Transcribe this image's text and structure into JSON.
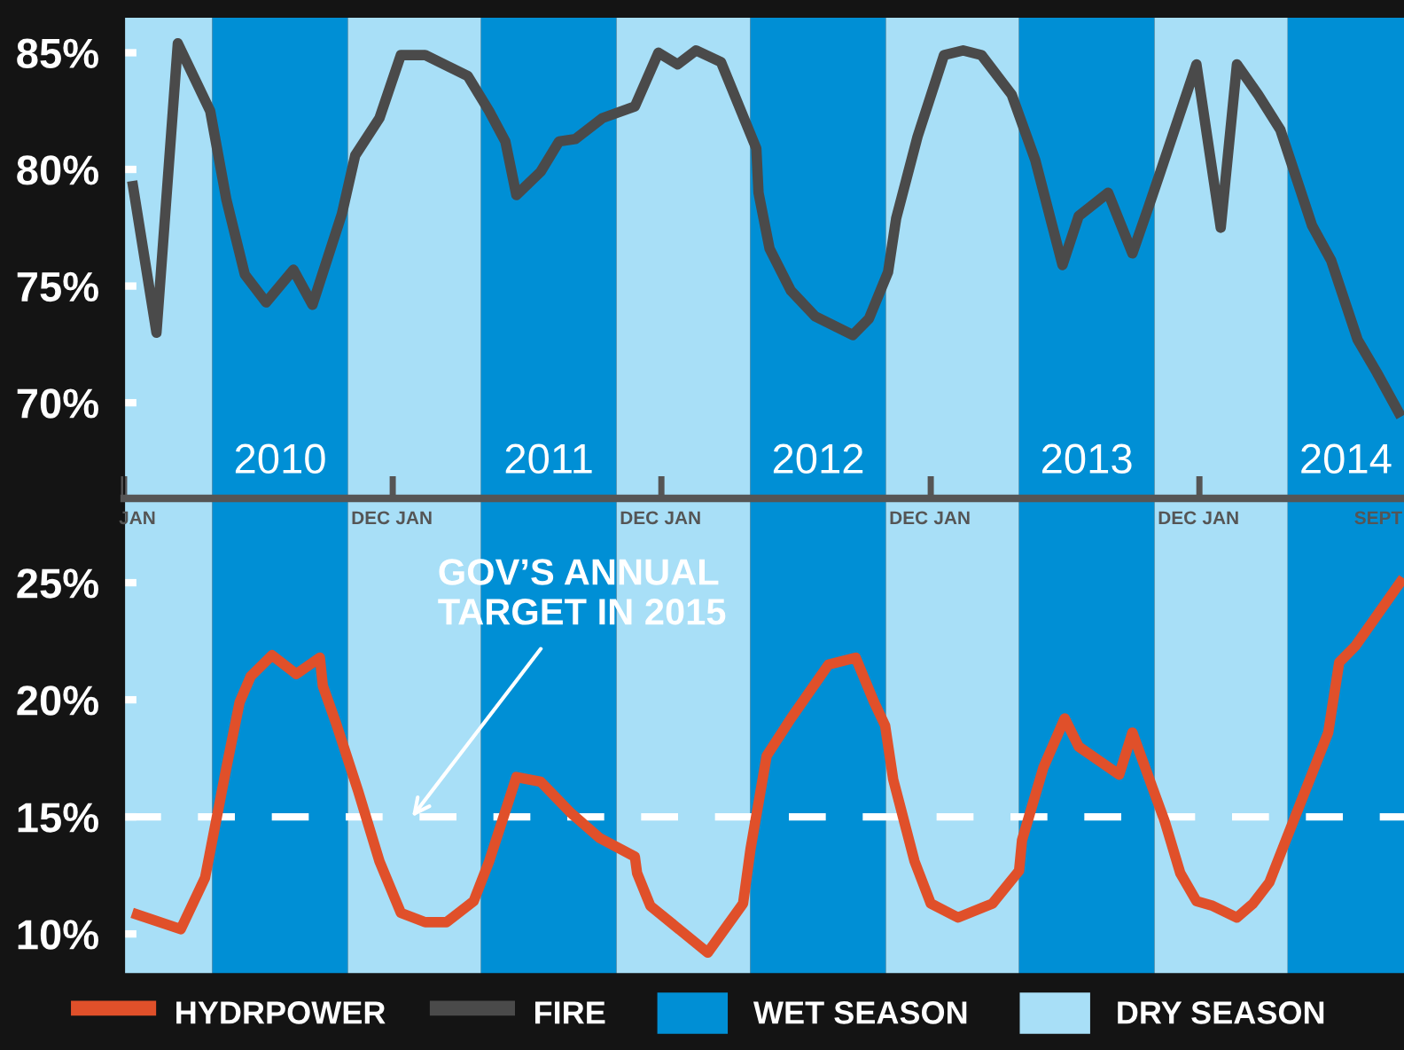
{
  "chart_data": [
    {
      "type": "line",
      "line_style": "solid",
      "marker": "none",
      "grid": false,
      "series": [
        {
          "name": "FIRE",
          "color": "#4a4a4a",
          "x": [
            "2010-01-12",
            "2010-02-14",
            "2010-03-15",
            "2010-04-28",
            "2010-05-20",
            "2010-06-14",
            "2010-07-13",
            "2010-08-19",
            "2010-09-14",
            "2010-10-24",
            "2010-11-11",
            "2010-12-14",
            "2011-01-12",
            "2011-02-14",
            "2011-04-13",
            "2011-05-12",
            "2011-06-03",
            "2011-06-18",
            "2011-07-21",
            "2011-08-15",
            "2011-09-06",
            "2011-10-13",
            "2011-11-26",
            "2011-12-28",
            "2012-01-23",
            "2012-02-17",
            "2012-03-22",
            "2012-05-09",
            "2012-05-12",
            "2012-05-27",
            "2012-06-25",
            "2012-07-28",
            "2012-09-17",
            "2012-10-09",
            "2012-11-04",
            "2012-11-15",
            "2012-12-14",
            "2013-01-19",
            "2013-02-14",
            "2013-03-11",
            "2013-04-21",
            "2013-05-23",
            "2013-06-29",
            "2013-07-21",
            "2013-08-30",
            "2013-10-02",
            "2013-10-24",
            "2013-11-07",
            "2013-12-28",
            "2014-01-30",
            "2014-02-21",
            "2014-03-22",
            "2014-04-21",
            "2014-05-12",
            "2014-06-03",
            "2014-06-29",
            "2014-08-04",
            "2014-08-30",
            "2014-10-02"
          ],
          "values": [
            79.5,
            73.0,
            85.4,
            82.5,
            78.7,
            75.5,
            74.3,
            75.7,
            74.2,
            78.1,
            80.6,
            82.2,
            84.9,
            84.9,
            84.0,
            82.5,
            81.2,
            78.9,
            79.9,
            81.2,
            81.3,
            82.2,
            82.7,
            85.0,
            84.5,
            85.1,
            84.6,
            80.9,
            79.0,
            76.6,
            74.8,
            73.7,
            72.9,
            73.6,
            75.6,
            77.9,
            81.4,
            84.9,
            85.1,
            84.9,
            83.2,
            80.4,
            75.9,
            78.0,
            79.0,
            76.4,
            78.4,
            79.7,
            84.5,
            77.5,
            84.5,
            83.2,
            81.7,
            79.7,
            77.6,
            76.1,
            72.7,
            71.3,
            69.4
          ]
        }
      ],
      "xlim": [
        "2010-01-01",
        "2014-10-06"
      ],
      "xticks": [
        {
          "value": "2010-01-01",
          "label": null
        },
        {
          "value": "2011-01-01",
          "label": null
        },
        {
          "value": "2012-01-01",
          "label": null
        },
        {
          "value": "2013-01-01",
          "label": null
        },
        {
          "value": "2014-01-01",
          "label": null
        },
        {
          "value": "2010-01-19",
          "label": "JAN"
        },
        {
          "value": "2010-12-02",
          "label": "DEC"
        },
        {
          "value": "2011-01-30",
          "label": "JAN"
        },
        {
          "value": "2011-12-02",
          "label": "DEC"
        },
        {
          "value": "2012-01-30",
          "label": "JAN"
        },
        {
          "value": "2012-12-02",
          "label": "DEC"
        },
        {
          "value": "2013-01-30",
          "label": "JAN"
        },
        {
          "value": "2013-12-02",
          "label": "DEC"
        },
        {
          "value": "2014-01-30",
          "label": "JAN"
        },
        {
          "value": "2014-09-01",
          "label": "SEPT"
        }
      ],
      "ylim": [
        65.9,
        86.5
      ],
      "yticks": [
        {
          "value": 70,
          "label": "70%"
        },
        {
          "value": 75,
          "label": "75%"
        },
        {
          "value": 80,
          "label": "80%"
        },
        {
          "value": 85,
          "label": "85%"
        }
      ],
      "bands": [
        {
          "axis": "x",
          "from": "2010-01-01",
          "to": "2010-05-01",
          "color": "#a8dff7"
        },
        {
          "axis": "x",
          "from": "2010-05-01",
          "to": "2010-11-01",
          "color": "#008fd5"
        },
        {
          "axis": "x",
          "from": "2010-11-01",
          "to": "2011-05-01",
          "color": "#a8dff7"
        },
        {
          "axis": "x",
          "from": "2011-05-01",
          "to": "2011-11-01",
          "color": "#008fd5"
        },
        {
          "axis": "x",
          "from": "2011-11-01",
          "to": "2012-05-01",
          "color": "#a8dff7"
        },
        {
          "axis": "x",
          "from": "2012-05-01",
          "to": "2012-11-01",
          "color": "#008fd5"
        },
        {
          "axis": "x",
          "from": "2012-11-01",
          "to": "2013-05-01",
          "color": "#a8dff7"
        },
        {
          "axis": "x",
          "from": "2013-05-01",
          "to": "2013-11-01",
          "color": "#008fd5"
        },
        {
          "axis": "x",
          "from": "2013-11-01",
          "to": "2014-05-01",
          "color": "#a8dff7"
        },
        {
          "axis": "x",
          "from": "2014-05-01",
          "to": "2014-10-06",
          "color": "#008fd5"
        }
      ],
      "annotations": [
        "2010",
        "2011",
        "2012",
        "2013",
        "2014"
      ]
    },
    {
      "type": "line",
      "line_style": "solid",
      "marker": "none",
      "grid": false,
      "tick_labels": "y",
      "legend": "bottom",
      "series": [
        {
          "name": "HYDRPOWER",
          "color": "#e0502a",
          "x": [
            "2010-01-12",
            "2010-03-19",
            "2010-04-21",
            "2010-05-20",
            "2010-06-07",
            "2010-06-22",
            "2010-07-21",
            "2010-08-23",
            "2010-09-24",
            "2010-09-28",
            "2010-10-16",
            "2010-11-15",
            "2010-12-14",
            "2011-01-12",
            "2011-02-14",
            "2011-03-15",
            "2011-04-21",
            "2011-05-12",
            "2011-06-18",
            "2011-07-21",
            "2011-08-30",
            "2011-10-09",
            "2011-11-26",
            "2011-11-29",
            "2011-12-17",
            "2012-03-04",
            "2012-04-21",
            "2012-05-01",
            "2012-05-23",
            "2012-06-25",
            "2012-08-15",
            "2012-09-21",
            "2012-10-16",
            "2012-10-31",
            "2012-11-11",
            "2012-12-10",
            "2013-01-01",
            "2013-02-07",
            "2013-03-26",
            "2013-05-01",
            "2013-05-05",
            "2013-06-03",
            "2013-07-02",
            "2013-07-21",
            "2013-09-14",
            "2013-10-02",
            "2013-11-15",
            "2013-12-06",
            "2013-12-28",
            "2014-01-19",
            "2014-02-21",
            "2014-03-15",
            "2014-04-06",
            "2014-05-01",
            "2014-06-25",
            "2014-07-10",
            "2014-08-01",
            "2014-10-05"
          ],
          "values": [
            10.9,
            10.2,
            12.4,
            17.1,
            19.9,
            21.0,
            21.9,
            21.1,
            21.8,
            20.6,
            19.0,
            16.1,
            13.1,
            10.9,
            10.5,
            10.5,
            11.4,
            13.1,
            16.7,
            16.5,
            15.2,
            14.1,
            13.3,
            12.6,
            11.2,
            9.2,
            11.3,
            13.6,
            17.6,
            19.2,
            21.5,
            21.8,
            19.9,
            18.9,
            16.6,
            13.1,
            11.3,
            10.7,
            11.3,
            12.7,
            14.0,
            17.1,
            19.2,
            18.0,
            16.8,
            18.6,
            14.8,
            12.6,
            11.4,
            11.2,
            10.7,
            11.3,
            12.2,
            14.2,
            18.6,
            21.6,
            22.3,
            25.2
          ]
        }
      ],
      "xlim": [
        "2010-01-01",
        "2014-10-06"
      ],
      "ylim": [
        8.3,
        28.6
      ],
      "yticks": [
        {
          "value": 10,
          "label": "10%"
        },
        {
          "value": 15,
          "label": "15%"
        },
        {
          "value": 20,
          "label": "20%"
        },
        {
          "value": 25,
          "label": "25%"
        }
      ],
      "ref_lines": [
        {
          "axis": "y",
          "value": 15,
          "label": "GOV’S ANNUAL\nTARGET IN 2015",
          "color": "#ffffff",
          "line_style": "dashed"
        }
      ],
      "bands": [
        {
          "axis": "x",
          "from": "2010-01-01",
          "to": "2010-05-01",
          "color": "#a8dff7",
          "label": "DRY SEASON"
        },
        {
          "axis": "x",
          "from": "2010-05-01",
          "to": "2010-11-01",
          "color": "#008fd5",
          "label": "WET SEASON"
        },
        {
          "axis": "x",
          "from": "2010-11-01",
          "to": "2011-05-01",
          "color": "#a8dff7"
        },
        {
          "axis": "x",
          "from": "2011-05-01",
          "to": "2011-11-01",
          "color": "#008fd5"
        },
        {
          "axis": "x",
          "from": "2011-11-01",
          "to": "2012-05-01",
          "color": "#a8dff7"
        },
        {
          "axis": "x",
          "from": "2012-05-01",
          "to": "2012-11-01",
          "color": "#008fd5"
        },
        {
          "axis": "x",
          "from": "2012-11-01",
          "to": "2013-05-01",
          "color": "#a8dff7"
        },
        {
          "axis": "x",
          "from": "2013-05-01",
          "to": "2013-11-01",
          "color": "#008fd5"
        },
        {
          "axis": "x",
          "from": "2013-11-01",
          "to": "2014-05-01",
          "color": "#a8dff7"
        },
        {
          "axis": "x",
          "from": "2014-05-01",
          "to": "2014-10-06",
          "color": "#008fd5"
        }
      ]
    }
  ]
}
